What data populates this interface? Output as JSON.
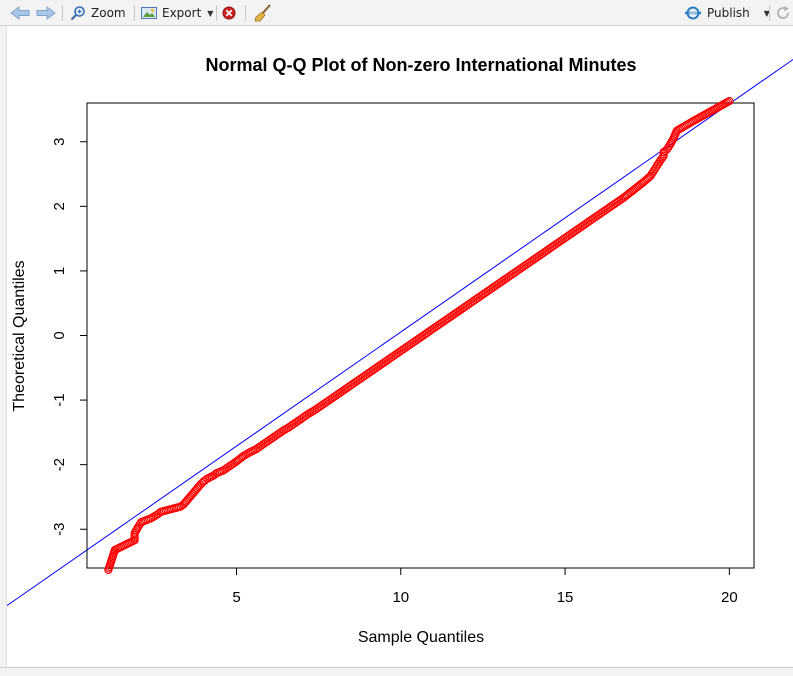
{
  "toolbar": {
    "back_icon": "arrow-left-icon",
    "forward_icon": "arrow-right-icon",
    "zoom_label": "Zoom",
    "export_label": "Export",
    "remove_icon": "remove-plot-icon",
    "clear_icon": "broom-icon",
    "publish_label": "Publish",
    "refresh_icon": "refresh-icon"
  },
  "colors": {
    "points": "#ff0000",
    "line": "#0000ff",
    "frame": "#000000"
  },
  "chart_data": {
    "type": "scatter",
    "title": "Normal Q-Q Plot of Non-zero International Minutes",
    "xlabel": "Sample Quantiles",
    "ylabel": "Theoretical Quantiles",
    "xlim": [
      0.45,
      20.75
    ],
    "ylim": [
      -3.6,
      3.6
    ],
    "x_ticks": [
      5,
      10,
      15,
      20
    ],
    "y_ticks": [
      -3,
      -2,
      -1,
      0,
      1,
      2,
      3
    ],
    "x_tick_labels": [
      "5",
      "10",
      "15",
      "20"
    ],
    "y_tick_labels": [
      "-3",
      "-2",
      "-1",
      "0",
      "1",
      "2",
      "3"
    ],
    "reference_line": {
      "intercept": -3.48,
      "slope": 0.3534
    },
    "series": [
      {
        "points": [
          [
            1.1,
            -3.63
          ],
          [
            1.3,
            -3.32
          ],
          [
            1.9,
            -3.17
          ],
          [
            1.9,
            -3.06
          ],
          [
            2.0,
            -2.97
          ],
          [
            2.1,
            -2.89
          ],
          [
            2.4,
            -2.83
          ],
          [
            2.6,
            -2.77
          ],
          [
            2.7,
            -2.73
          ],
          [
            3.0,
            -2.69
          ],
          [
            3.3,
            -2.65
          ],
          [
            3.4,
            -2.61
          ],
          [
            3.5,
            -2.55
          ],
          [
            3.6,
            -2.49
          ],
          [
            3.7,
            -2.43
          ],
          [
            3.8,
            -2.37
          ],
          [
            3.9,
            -2.31
          ],
          [
            4.0,
            -2.26
          ],
          [
            4.1,
            -2.22
          ],
          [
            4.3,
            -2.17
          ],
          [
            4.4,
            -2.13
          ],
          [
            4.6,
            -2.09
          ],
          [
            4.8,
            -2.02
          ],
          [
            5.0,
            -1.95
          ],
          [
            5.2,
            -1.87
          ],
          [
            5.4,
            -1.81
          ],
          [
            5.6,
            -1.76
          ],
          [
            5.8,
            -1.69
          ],
          [
            6.0,
            -1.62
          ],
          [
            6.2,
            -1.55
          ],
          [
            6.4,
            -1.48
          ],
          [
            6.6,
            -1.42
          ],
          [
            6.8,
            -1.35
          ],
          [
            7.0,
            -1.28
          ],
          [
            7.2,
            -1.21
          ],
          [
            7.4,
            -1.15
          ],
          [
            7.6,
            -1.08
          ],
          [
            7.8,
            -1.01
          ],
          [
            8.0,
            -0.94
          ],
          [
            8.2,
            -0.87
          ],
          [
            8.4,
            -0.8
          ],
          [
            8.6,
            -0.73
          ],
          [
            8.8,
            -0.66
          ],
          [
            9.0,
            -0.59
          ],
          [
            9.2,
            -0.52
          ],
          [
            9.4,
            -0.45
          ],
          [
            9.6,
            -0.38
          ],
          [
            9.8,
            -0.31
          ],
          [
            10.0,
            -0.24
          ],
          [
            10.2,
            -0.17
          ],
          [
            10.4,
            -0.1
          ],
          [
            10.6,
            -0.03
          ],
          [
            10.8,
            0.04
          ],
          [
            11.0,
            0.11
          ],
          [
            11.2,
            0.18
          ],
          [
            11.4,
            0.25
          ],
          [
            11.6,
            0.32
          ],
          [
            11.8,
            0.39
          ],
          [
            12.0,
            0.46
          ],
          [
            12.2,
            0.53
          ],
          [
            12.4,
            0.6
          ],
          [
            12.6,
            0.67
          ],
          [
            12.8,
            0.74
          ],
          [
            13.0,
            0.81
          ],
          [
            13.2,
            0.88
          ],
          [
            13.4,
            0.95
          ],
          [
            13.6,
            1.02
          ],
          [
            13.8,
            1.09
          ],
          [
            14.0,
            1.16
          ],
          [
            14.2,
            1.23
          ],
          [
            14.4,
            1.3
          ],
          [
            14.6,
            1.37
          ],
          [
            14.8,
            1.44
          ],
          [
            15.0,
            1.51
          ],
          [
            15.2,
            1.58
          ],
          [
            15.4,
            1.65
          ],
          [
            15.6,
            1.72
          ],
          [
            15.8,
            1.79
          ],
          [
            16.0,
            1.86
          ],
          [
            16.2,
            1.93
          ],
          [
            16.4,
            2.0
          ],
          [
            16.6,
            2.07
          ],
          [
            16.8,
            2.14
          ],
          [
            17.0,
            2.22
          ],
          [
            17.2,
            2.3
          ],
          [
            17.4,
            2.38
          ],
          [
            17.6,
            2.47
          ],
          [
            17.7,
            2.55
          ],
          [
            17.8,
            2.63
          ],
          [
            17.9,
            2.71
          ],
          [
            18.0,
            2.78
          ],
          [
            18.0,
            2.84
          ],
          [
            18.1,
            2.88
          ],
          [
            18.2,
            2.96
          ],
          [
            18.3,
            3.05
          ],
          [
            18.4,
            3.17
          ],
          [
            18.9,
            3.32
          ],
          [
            20.0,
            3.63
          ]
        ]
      }
    ]
  }
}
